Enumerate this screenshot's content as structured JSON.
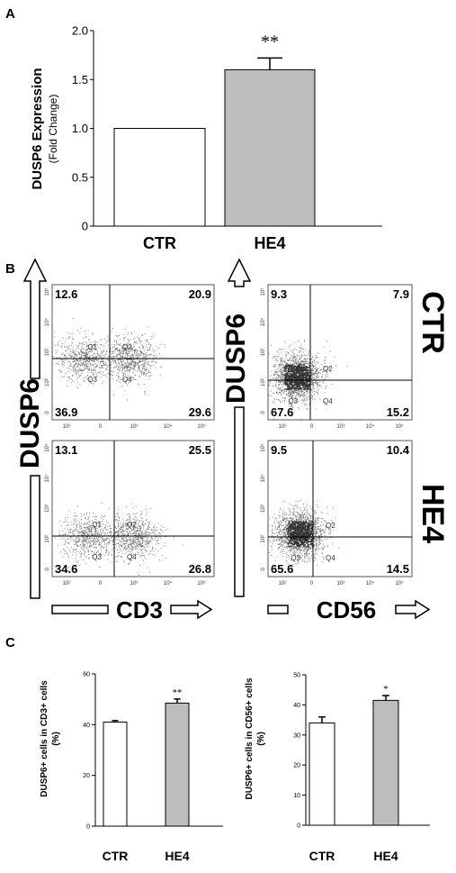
{
  "panels": {
    "a": "A",
    "b": "B",
    "c": "C"
  },
  "chart_data": [
    {
      "type": "bar",
      "id": "A",
      "ylabel_line1": "DUSP6 Expression",
      "ylabel_line2": "(Fold Change)",
      "categories": [
        "CTR",
        "HE4"
      ],
      "values": [
        1.0,
        1.6
      ],
      "errors": [
        0,
        0.12
      ],
      "colors": [
        "#ffffff",
        "#bdbdbd"
      ],
      "significance": [
        "",
        "**"
      ],
      "ylim": [
        0,
        2.0
      ],
      "yticks": [
        "0",
        "0.5",
        "1.0",
        "1.5",
        "2.0"
      ],
      "ytick_values": [
        0,
        0.5,
        1.0,
        1.5,
        2.0
      ]
    },
    {
      "type": "scatter",
      "id": "B",
      "y_axis_label": "DUSP6",
      "row_labels": [
        "CTR",
        "HE4"
      ],
      "col_labels": [
        "CD3",
        "CD56"
      ],
      "tick_labels_y": [
        "10⁵",
        "10⁴",
        "10³",
        "10²",
        "0"
      ],
      "tick_labels_x": [
        "10²",
        "0",
        "10³",
        "10⁴",
        "10⁵"
      ],
      "quadrant_names": [
        "Q1",
        "Q2",
        "Q3",
        "Q4"
      ],
      "plots": [
        {
          "name": "CD3-CTR",
          "q1": "12.6",
          "q2": "20.9",
          "q3": "36.9",
          "q4": "29.6"
        },
        {
          "name": "CD56-CTR",
          "q1": "9.3",
          "q2": "7.9",
          "q3": "67.6",
          "q4": "15.2"
        },
        {
          "name": "CD3-HE4",
          "q1": "13.1",
          "q2": "25.5",
          "q3": "34.6",
          "q4": "26.8"
        },
        {
          "name": "CD56-HE4",
          "q1": "9.5",
          "q2": "10.4",
          "q3": "65.6",
          "q4": "14.5"
        }
      ]
    },
    {
      "type": "bar",
      "id": "C-left",
      "ylabel_line1": "DUSP6+ cells in CD3+ cells",
      "ylabel_line2": "(%)",
      "categories": [
        "CTR",
        "HE4"
      ],
      "values": [
        41,
        48.5
      ],
      "errors": [
        0.6,
        1.6
      ],
      "colors": [
        "#ffffff",
        "#bdbdbd"
      ],
      "significance": [
        "",
        "**"
      ],
      "ylim": [
        0,
        60
      ],
      "yticks": [
        "0",
        "20",
        "40",
        "60"
      ],
      "ytick_values": [
        0,
        20,
        40,
        60
      ]
    },
    {
      "type": "bar",
      "id": "C-right",
      "ylabel_line1": "DUSP6+ cells in CD56+ cells",
      "ylabel_line2": "(%)",
      "categories": [
        "CTR",
        "HE4"
      ],
      "values": [
        34,
        41.5
      ],
      "errors": [
        2,
        1.6
      ],
      "colors": [
        "#ffffff",
        "#bdbdbd"
      ],
      "significance": [
        "",
        "*"
      ],
      "ylim": [
        0,
        50
      ],
      "yticks": [
        "0",
        "10",
        "20",
        "30",
        "40",
        "50"
      ],
      "ytick_values": [
        0,
        10,
        20,
        30,
        40,
        50
      ]
    }
  ]
}
